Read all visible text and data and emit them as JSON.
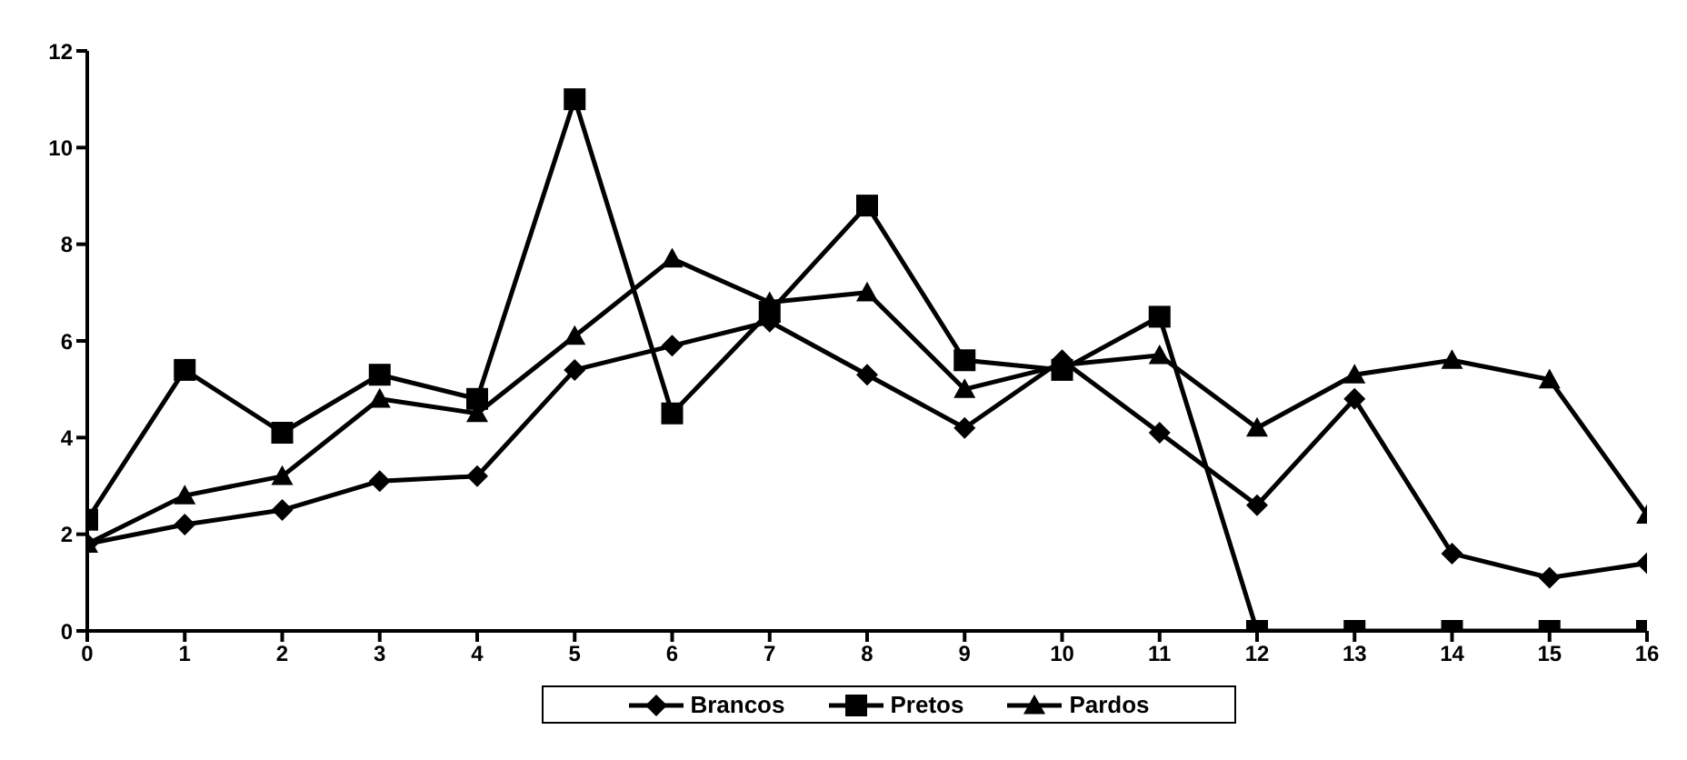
{
  "chart_data": {
    "type": "line",
    "x": [
      0,
      1,
      2,
      3,
      4,
      5,
      6,
      7,
      8,
      9,
      10,
      11,
      12,
      13,
      14,
      15,
      16
    ],
    "series": [
      {
        "name": "Brancos",
        "color": "#000000",
        "marker": "diamond",
        "values": [
          1.8,
          2.2,
          2.5,
          3.1,
          3.2,
          5.4,
          5.9,
          6.4,
          5.3,
          4.2,
          5.6,
          4.1,
          2.6,
          4.8,
          1.6,
          1.1,
          1.4
        ]
      },
      {
        "name": "Pretos",
        "color": "#000000",
        "marker": "square",
        "values": [
          2.3,
          5.4,
          4.1,
          5.3,
          4.8,
          11.0,
          4.5,
          6.6,
          8.8,
          5.6,
          5.4,
          6.5,
          0,
          0,
          0,
          0,
          0
        ]
      },
      {
        "name": "Pardos",
        "color": "#000000",
        "marker": "triangle",
        "values": [
          1.8,
          2.8,
          3.2,
          4.8,
          4.5,
          6.1,
          7.7,
          6.8,
          7.0,
          5.0,
          5.5,
          5.7,
          4.2,
          5.3,
          5.6,
          5.2,
          2.4
        ]
      }
    ],
    "xlim": [
      0,
      16
    ],
    "xticks": [
      0,
      1,
      2,
      3,
      4,
      5,
      6,
      7,
      8,
      9,
      10,
      11,
      12,
      13,
      14,
      15,
      16
    ],
    "ylim": [
      0,
      12
    ],
    "yticks": [
      0,
      2,
      4,
      6,
      8,
      10,
      12
    ],
    "legend": "bottom"
  }
}
